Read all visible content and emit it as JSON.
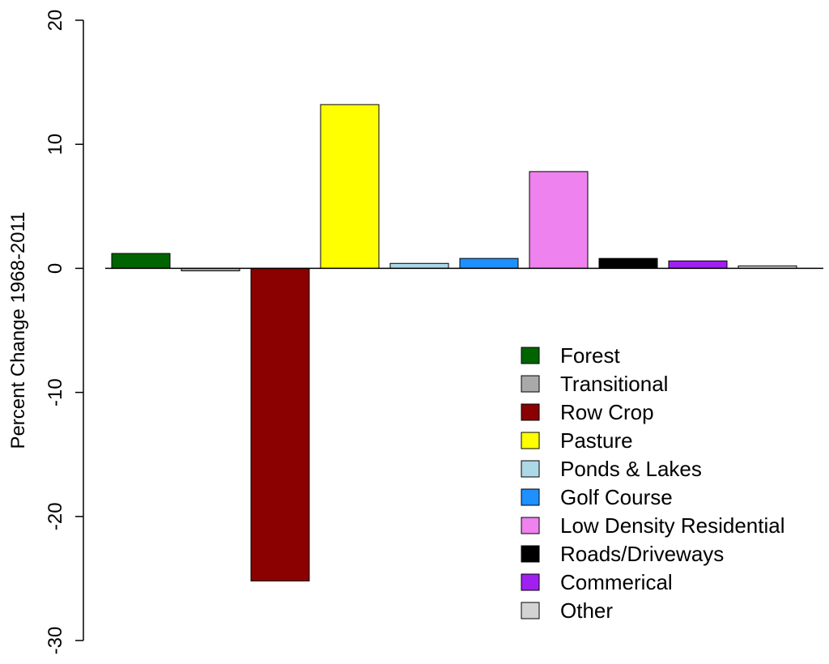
{
  "chart_data": {
    "type": "bar",
    "title": "",
    "xlabel": "",
    "ylabel": "Percent Change 1968-2011",
    "ylim": [
      -30,
      20
    ],
    "yticks": [
      -30,
      -20,
      -10,
      0,
      10,
      20
    ],
    "grid": false,
    "legend_position": "bottom-right",
    "categories": [
      "Forest",
      "Transitional",
      "Row Crop",
      "Pasture",
      "Ponds & Lakes",
      "Golf Course",
      "Low Density Residential",
      "Roads/Driveways",
      "Commerical",
      "Other"
    ],
    "values": [
      1.2,
      -0.2,
      -25.2,
      13.2,
      0.4,
      0.8,
      7.8,
      0.8,
      0.6,
      0.2
    ],
    "colors": [
      "#006400",
      "#a9a9a9",
      "#8b0000",
      "#ffff00",
      "#add8e6",
      "#1e90ff",
      "#ee82ee",
      "#000000",
      "#a020f0",
      "#d3d3d3"
    ]
  }
}
